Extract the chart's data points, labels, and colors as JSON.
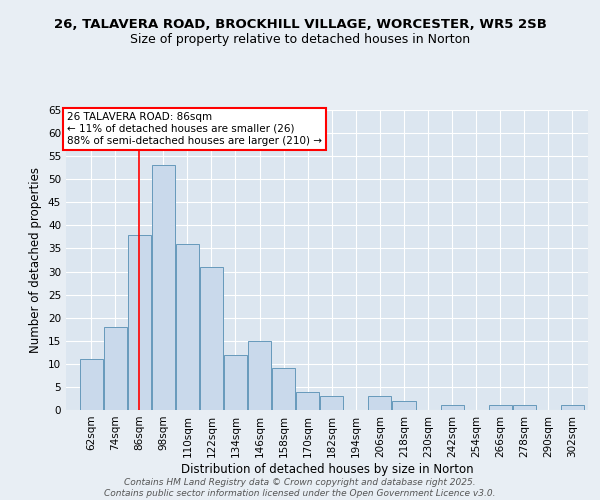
{
  "title1": "26, TALAVERA ROAD, BROCKHILL VILLAGE, WORCESTER, WR5 2SB",
  "title2": "Size of property relative to detached houses in Norton",
  "xlabel": "Distribution of detached houses by size in Norton",
  "ylabel": "Number of detached properties",
  "bins": [
    62,
    74,
    86,
    98,
    110,
    122,
    134,
    146,
    158,
    170,
    182,
    194,
    206,
    218,
    230,
    242,
    254,
    266,
    278,
    290,
    302
  ],
  "values": [
    11,
    18,
    38,
    53,
    36,
    31,
    12,
    15,
    9,
    4,
    3,
    0,
    3,
    2,
    0,
    1,
    0,
    1,
    1,
    0,
    1
  ],
  "bar_color": "#c9d9eb",
  "bar_edge_color": "#6699bb",
  "red_line_x": 86,
  "annotation_line1": "26 TALAVERA ROAD: 86sqm",
  "annotation_line2": "← 11% of detached houses are smaller (26)",
  "annotation_line3": "88% of semi-detached houses are larger (210) →",
  "footer_text": "Contains HM Land Registry data © Crown copyright and database right 2025.\nContains public sector information licensed under the Open Government Licence v3.0.",
  "ylim": [
    0,
    65
  ],
  "yticks": [
    0,
    5,
    10,
    15,
    20,
    25,
    30,
    35,
    40,
    45,
    50,
    55,
    60,
    65
  ],
  "background_color": "#e8eef4",
  "plot_bg_color": "#dce6f0",
  "grid_color": "#ffffff",
  "title_fontsize": 9.5,
  "subtitle_fontsize": 9,
  "axis_label_fontsize": 8.5,
  "tick_fontsize": 7.5,
  "annotation_fontsize": 7.5,
  "footer_fontsize": 6.5
}
